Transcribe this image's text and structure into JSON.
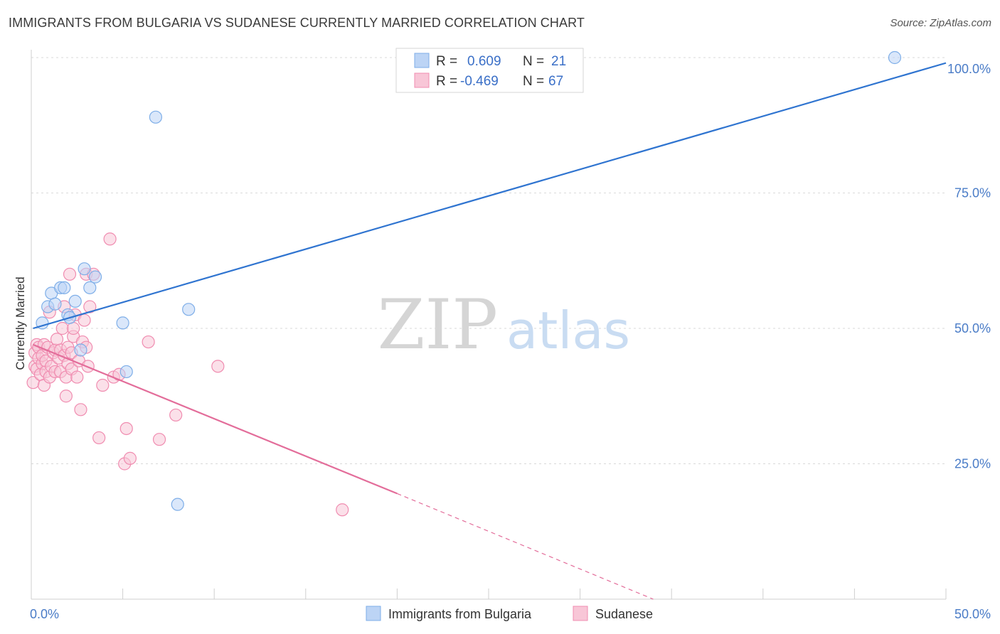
{
  "header": {
    "title": "IMMIGRANTS FROM BULGARIA VS SUDANESE CURRENTLY MARRIED CORRELATION CHART",
    "source": "Source: ZipAtlas.com"
  },
  "watermark": {
    "zip": "ZIP",
    "atlas": "atlas"
  },
  "colors": {
    "blue": "#7eaee8",
    "blue_fill": "#bcd4f5",
    "blue_line": "#2f74d0",
    "pink": "#f08cb0",
    "pink_fill": "#f8c6d7",
    "pink_line": "#e36d9a",
    "grid": "#d9d9d9",
    "axis_text": "#4a7cc7"
  },
  "stats": {
    "bulgaria": {
      "r_label": "R =",
      "r_value": "0.609",
      "n_label": "N =",
      "n_value": "21"
    },
    "sudanese": {
      "r_label": "R =",
      "r_value": "-0.469",
      "n_label": "N =",
      "n_value": "67"
    }
  },
  "chart_data": {
    "type": "scatter",
    "title": "IMMIGRANTS FROM BULGARIA VS SUDANESE CURRENTLY MARRIED CORRELATION CHART",
    "xlabel": "",
    "ylabel": "Currently Married",
    "xlim": [
      0,
      50
    ],
    "ylim": [
      0,
      102
    ],
    "x_tick_labels": [
      {
        "value": 0,
        "label": "0.0%"
      },
      {
        "value": 50,
        "label": "50.0%"
      }
    ],
    "x_minor_ticks": [
      5,
      10,
      15,
      20,
      25,
      30,
      35,
      40,
      45
    ],
    "y_tick_labels": [
      {
        "value": 25,
        "label": "25.0%"
      },
      {
        "value": 50,
        "label": "50.0%"
      },
      {
        "value": 75,
        "label": "75.0%"
      },
      {
        "value": 100,
        "label": "100.0%"
      }
    ],
    "grid": true,
    "series": [
      {
        "name": "Immigrants from Bulgaria",
        "color": "#7eaee8",
        "points": [
          [
            0.6,
            51.0
          ],
          [
            0.9,
            54.0
          ],
          [
            1.1,
            56.5
          ],
          [
            1.3,
            54.5
          ],
          [
            1.6,
            57.5
          ],
          [
            1.8,
            57.5
          ],
          [
            2.0,
            52.5
          ],
          [
            2.1,
            52.0
          ],
          [
            2.4,
            55.0
          ],
          [
            2.7,
            46.0
          ],
          [
            2.9,
            61.0
          ],
          [
            3.2,
            57.5
          ],
          [
            3.5,
            59.5
          ],
          [
            5.0,
            51.0
          ],
          [
            5.2,
            42.0
          ],
          [
            6.8,
            89.0
          ],
          [
            8.0,
            17.5
          ],
          [
            8.6,
            53.5
          ],
          [
            47.2,
            100.0
          ]
        ],
        "trend": {
          "x0": 0.1,
          "y0": 50.0,
          "x1": 50.0,
          "y1": 99.0
        }
      },
      {
        "name": "Sudanese",
        "color": "#f08cb0",
        "points": [
          [
            0.1,
            40.0
          ],
          [
            0.2,
            43.0
          ],
          [
            0.2,
            45.5
          ],
          [
            0.3,
            47.0
          ],
          [
            0.3,
            42.5
          ],
          [
            0.4,
            44.5
          ],
          [
            0.4,
            46.5
          ],
          [
            0.5,
            41.5
          ],
          [
            0.6,
            43.5
          ],
          [
            0.6,
            45.0
          ],
          [
            0.7,
            39.5
          ],
          [
            0.7,
            47.0
          ],
          [
            0.8,
            42.0
          ],
          [
            0.8,
            44.0
          ],
          [
            0.9,
            46.5
          ],
          [
            1.0,
            53.0
          ],
          [
            1.0,
            41.0
          ],
          [
            1.1,
            43.0
          ],
          [
            1.2,
            45.5
          ],
          [
            1.3,
            46.0
          ],
          [
            1.3,
            42.0
          ],
          [
            1.4,
            48.0
          ],
          [
            1.5,
            44.5
          ],
          [
            1.6,
            46.0
          ],
          [
            1.6,
            42.0
          ],
          [
            1.7,
            50.0
          ],
          [
            1.8,
            45.0
          ],
          [
            1.8,
            54.0
          ],
          [
            1.9,
            41.0
          ],
          [
            1.9,
            37.5
          ],
          [
            2.0,
            43.5
          ],
          [
            2.0,
            46.5
          ],
          [
            2.1,
            60.0
          ],
          [
            2.2,
            42.5
          ],
          [
            2.2,
            45.5
          ],
          [
            2.3,
            48.5
          ],
          [
            2.3,
            50.0
          ],
          [
            2.4,
            52.5
          ],
          [
            2.5,
            41.0
          ],
          [
            2.6,
            44.0
          ],
          [
            2.7,
            35.0
          ],
          [
            2.8,
            47.5
          ],
          [
            2.9,
            51.5
          ],
          [
            3.0,
            60.0
          ],
          [
            3.0,
            46.5
          ],
          [
            3.1,
            43.0
          ],
          [
            3.2,
            54.0
          ],
          [
            3.4,
            60.0
          ],
          [
            3.7,
            29.8
          ],
          [
            3.9,
            39.5
          ],
          [
            4.3,
            66.5
          ],
          [
            4.5,
            41.0
          ],
          [
            4.8,
            41.5
          ],
          [
            5.1,
            25.0
          ],
          [
            5.2,
            31.5
          ],
          [
            5.4,
            26.0
          ],
          [
            6.4,
            47.5
          ],
          [
            7.0,
            29.5
          ],
          [
            7.9,
            34.0
          ],
          [
            10.2,
            43.0
          ],
          [
            17.0,
            16.5
          ]
        ],
        "trend": {
          "x0": 0.1,
          "y0": 47.0,
          "x1": 20.0,
          "y1": 19.5,
          "dash_x1": 34.0,
          "dash_y1": 0.0
        }
      }
    ],
    "legend": [
      "Immigrants from Bulgaria",
      "Sudanese"
    ]
  }
}
